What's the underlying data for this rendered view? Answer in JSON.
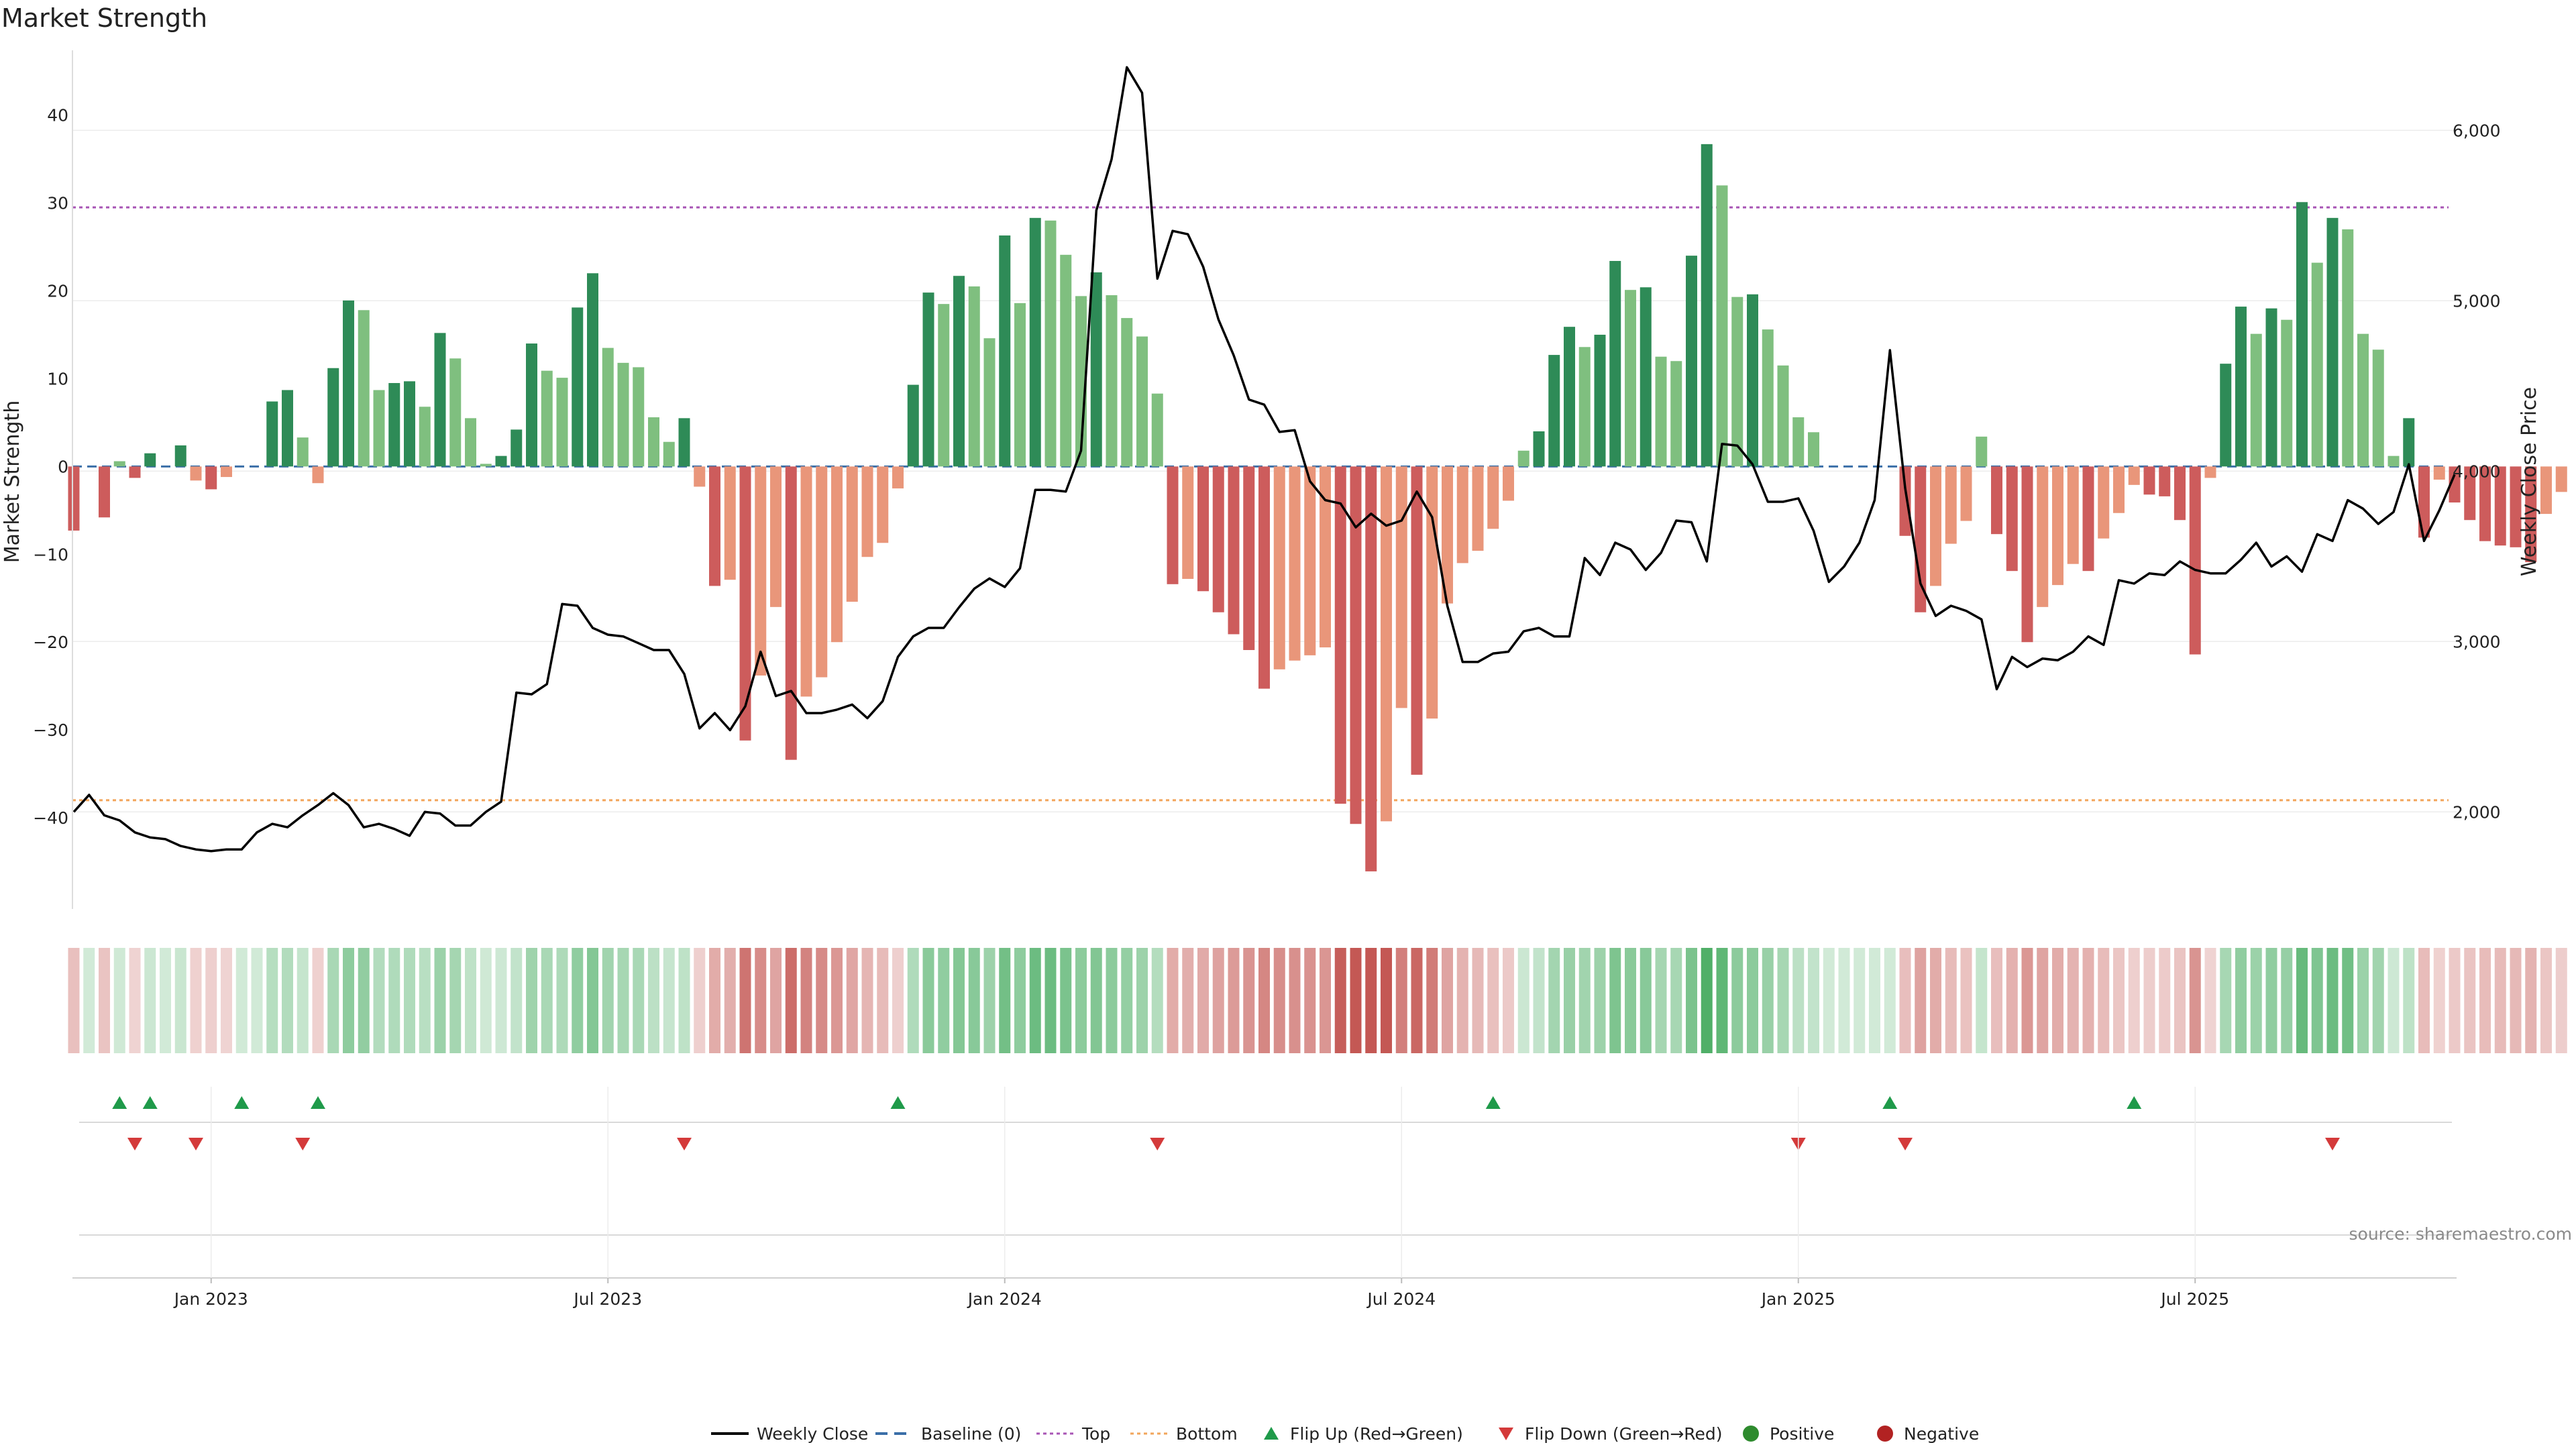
{
  "chart_data": {
    "type": "bar+line",
    "title": "Market Strength",
    "ylabel_left": "Market Strength",
    "ylabel_right": "Weekly Close Price",
    "ylim_left": [
      -50,
      47
    ],
    "ylim_right": [
      1450,
      6450
    ],
    "yticks_left": [
      40,
      30,
      20,
      10,
      0,
      -10,
      -20,
      -30,
      -40
    ],
    "ytick_labels_left": [
      "40",
      "30",
      "20",
      "10",
      "0",
      "−10",
      "−20",
      "−30",
      "−40"
    ],
    "yticks_right": [
      6000,
      5000,
      4000,
      3000,
      2000
    ],
    "ytick_labels_right": [
      "6,000",
      "5,000",
      "4,000",
      "3,000",
      "2,000"
    ],
    "x_ticks": [
      {
        "label": "Jan 2023",
        "week": 9
      },
      {
        "label": "Jul 2023",
        "week": 35
      },
      {
        "label": "Jan 2024",
        "week": 61
      },
      {
        "label": "Jul 2024",
        "week": 87
      },
      {
        "label": "Jan 2025",
        "week": 113
      },
      {
        "label": "Jul 2025",
        "week": 139
      }
    ],
    "top_level": 29.5,
    "bottom_level": -38,
    "strength": [
      -7.3,
      0,
      -5.8,
      0.6,
      -1.3,
      1.5,
      0,
      2.4,
      -1.6,
      -2.6,
      -1.2,
      0,
      0,
      7.4,
      8.7,
      3.3,
      -1.9,
      11.2,
      18.9,
      17.8,
      8.7,
      9.5,
      9.7,
      6.8,
      15.2,
      12.3,
      5.5,
      0.3,
      1.2,
      4.2,
      14.0,
      10.9,
      10.1,
      18.1,
      22.0,
      13.5,
      11.8,
      11.3,
      5.6,
      2.8,
      5.5,
      -2.3,
      -13.6,
      -12.9,
      -31.2,
      -23.8,
      -16.0,
      -33.4,
      -26.2,
      -24.0,
      -20.0,
      -15.4,
      -10.3,
      -8.7,
      -2.5,
      9.3,
      19.8,
      18.5,
      21.7,
      20.5,
      14.6,
      26.3,
      18.6,
      28.3,
      28.0,
      24.1,
      19.4,
      22.1,
      19.5,
      16.9,
      14.8,
      8.3,
      -13.4,
      -12.8,
      -14.2,
      -16.6,
      -19.1,
      -20.9,
      -25.3,
      -23.1,
      -22.1,
      -21.5,
      -20.6,
      -38.4,
      -40.7,
      -46.1,
      -40.4,
      -27.5,
      -35.1,
      -28.7,
      -15.6,
      -11.0,
      -9.6,
      -7.1,
      -3.9,
      1.8,
      4.0,
      12.7,
      15.9,
      13.6,
      15.0,
      23.4,
      20.1,
      20.4,
      12.5,
      12.0,
      24.0,
      36.7,
      32.0,
      19.3,
      19.6,
      15.6,
      11.5,
      5.6,
      3.9,
      0,
      0,
      0,
      0,
      0,
      -7.9,
      -16.6,
      -13.6,
      -8.8,
      -6.2,
      3.4,
      -7.7,
      -11.9,
      -20.0,
      -16.0,
      -13.5,
      -11.1,
      -11.9,
      -8.2,
      -5.3,
      -2.1,
      -3.2,
      -3.4,
      -6.1,
      -21.4,
      -1.3,
      11.7,
      18.2,
      15.1,
      18.0,
      16.7,
      30.1,
      23.2,
      28.3,
      27.0,
      15.1,
      13.3,
      1.2,
      5.5,
      -8.1,
      -1.5,
      -4.1,
      -6.1,
      -8.5,
      -9.0,
      -9.2,
      -10.9,
      -5.4,
      -2.9
    ],
    "weekly_close": [
      2000,
      2100,
      1980,
      1950,
      1880,
      1850,
      1840,
      1800,
      1780,
      1770,
      1780,
      1780,
      1880,
      1930,
      1910,
      1980,
      2040,
      2110,
      2040,
      1910,
      1930,
      1900,
      1860,
      2000,
      1990,
      1920,
      1920,
      2000,
      2060,
      2700,
      2690,
      2750,
      3220,
      3210,
      3080,
      3040,
      3030,
      2990,
      2950,
      2950,
      2810,
      2490,
      2580,
      2480,
      2620,
      2940,
      2680,
      2710,
      2580,
      2580,
      2600,
      2630,
      2550,
      2650,
      2910,
      3030,
      3080,
      3080,
      3200,
      3310,
      3370,
      3320,
      3430,
      3890,
      3890,
      3880,
      4120,
      5530,
      5830,
      6370,
      6220,
      5130,
      5410,
      5390,
      5200,
      4890,
      4680,
      4420,
      4390,
      4230,
      4240,
      3940,
      3830,
      3810,
      3670,
      3750,
      3680,
      3710,
      3880,
      3730,
      3210,
      2880,
      2880,
      2930,
      2940,
      3060,
      3080,
      3030,
      3030,
      3490,
      3390,
      3580,
      3540,
      3420,
      3520,
      3710,
      3700,
      3470,
      4160,
      4150,
      4040,
      3820,
      3820,
      3840,
      3650,
      3350,
      3440,
      3580,
      3830,
      4710,
      3900,
      3340,
      3150,
      3210,
      3180,
      3130,
      2720,
      2910,
      2850,
      2900,
      2890,
      2940,
      3030,
      2980,
      3360,
      3340,
      3400,
      3390,
      3470,
      3420,
      3400,
      3400,
      3480,
      3580,
      3440,
      3500,
      3410,
      3630,
      3590,
      3830,
      3780,
      3690,
      3760,
      4040,
      3590,
      3770,
      3980
    ],
    "flip_up_weeks": [
      3,
      5,
      11,
      16,
      54,
      93,
      119,
      135
    ],
    "flip_down_weeks": [
      4,
      8,
      15,
      40,
      71,
      113,
      120,
      148
    ],
    "source_text": "source: sharemaestro.com",
    "legend": [
      {
        "key": "weekly_close",
        "label": "Weekly Close",
        "color": "#000000"
      },
      {
        "key": "baseline",
        "label": "Baseline (0)",
        "color": "#3b6fa8"
      },
      {
        "key": "top",
        "label": "Top",
        "color": "#a855b5"
      },
      {
        "key": "bottom",
        "label": "Bottom",
        "color": "#f2a55b"
      },
      {
        "key": "flip_up",
        "label": "Flip Up (Red→Green)",
        "color": "#1f9a4a"
      },
      {
        "key": "flip_down",
        "label": "Flip Down (Green→Red)",
        "color": "#d43a3a"
      },
      {
        "key": "positive",
        "label": "Positive",
        "color": "#2e8b2e"
      },
      {
        "key": "negative",
        "label": "Negative",
        "color": "#b22222"
      }
    ],
    "colors": {
      "pos_dark": "#2e8b57",
      "pos_light": "#7fbf7f",
      "neg_dark": "#cd5c5c",
      "neg_light": "#e9967a",
      "line": "#000000",
      "baseline": "#3b6fa8",
      "top": "#a855b5",
      "bottom": "#f2a55b",
      "flip_up": "#1f9a4a",
      "flip_down": "#d43a3a"
    }
  }
}
